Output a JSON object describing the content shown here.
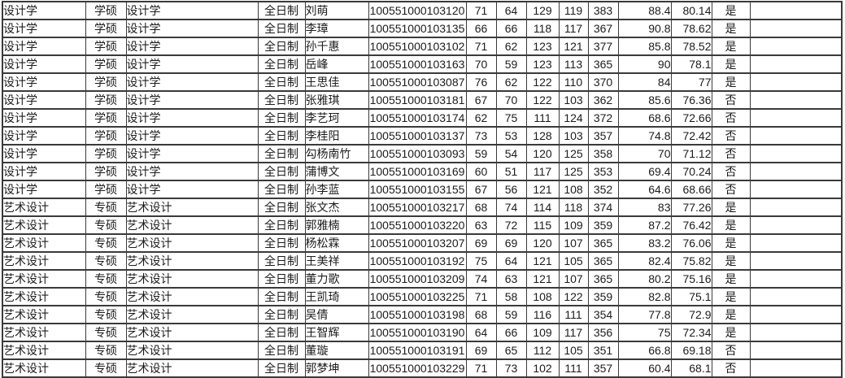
{
  "table": {
    "rows": [
      [
        "设计学",
        "学硕",
        "设计学",
        "全日制",
        "刘萌",
        "100551000103120",
        "71",
        "64",
        "129",
        "119",
        "383",
        "88.4",
        "80.14",
        "是",
        ""
      ],
      [
        "设计学",
        "学硕",
        "设计学",
        "全日制",
        "李璋",
        "100551000103135",
        "66",
        "66",
        "118",
        "117",
        "367",
        "90.8",
        "78.62",
        "是",
        ""
      ],
      [
        "设计学",
        "学硕",
        "设计学",
        "全日制",
        "孙千惠",
        "100551000103102",
        "71",
        "62",
        "123",
        "121",
        "377",
        "85.8",
        "78.52",
        "是",
        ""
      ],
      [
        "设计学",
        "学硕",
        "设计学",
        "全日制",
        "岳峰",
        "100551000103163",
        "70",
        "59",
        "123",
        "113",
        "365",
        "90",
        "78.1",
        "是",
        ""
      ],
      [
        "设计学",
        "学硕",
        "设计学",
        "全日制",
        "王思佳",
        "100551000103087",
        "76",
        "62",
        "122",
        "110",
        "370",
        "84",
        "77",
        "是",
        ""
      ],
      [
        "设计学",
        "学硕",
        "设计学",
        "全日制",
        "张雅琪",
        "100551000103181",
        "67",
        "70",
        "122",
        "103",
        "362",
        "85.6",
        "76.36",
        "否",
        ""
      ],
      [
        "设计学",
        "学硕",
        "设计学",
        "全日制",
        "李艺珂",
        "100551000103174",
        "62",
        "75",
        "111",
        "124",
        "372",
        "68.6",
        "72.66",
        "否",
        ""
      ],
      [
        "设计学",
        "学硕",
        "设计学",
        "全日制",
        "李桂阳",
        "100551000103137",
        "73",
        "53",
        "128",
        "103",
        "357",
        "74.8",
        "72.42",
        "否",
        ""
      ],
      [
        "设计学",
        "学硕",
        "设计学",
        "全日制",
        "勾杨南竹",
        "100551000103093",
        "59",
        "54",
        "120",
        "125",
        "358",
        "70",
        "71.12",
        "否",
        ""
      ],
      [
        "设计学",
        "学硕",
        "设计学",
        "全日制",
        "蒲博文",
        "100551000103169",
        "60",
        "51",
        "117",
        "125",
        "353",
        "69.4",
        "70.24",
        "否",
        ""
      ],
      [
        "设计学",
        "学硕",
        "设计学",
        "全日制",
        "孙李蓝",
        "100551000103155",
        "67",
        "56",
        "121",
        "108",
        "352",
        "64.6",
        "68.66",
        "否",
        ""
      ],
      [
        "艺术设计",
        "专硕",
        "艺术设计",
        "全日制",
        "张文杰",
        "100551000103217",
        "68",
        "74",
        "114",
        "118",
        "374",
        "83",
        "77.26",
        "是",
        ""
      ],
      [
        "艺术设计",
        "专硕",
        "艺术设计",
        "全日制",
        "郭雅楠",
        "100551000103220",
        "63",
        "72",
        "115",
        "109",
        "359",
        "87.2",
        "76.42",
        "是",
        ""
      ],
      [
        "艺术设计",
        "专硕",
        "艺术设计",
        "全日制",
        "杨松霖",
        "100551000103207",
        "69",
        "69",
        "120",
        "107",
        "365",
        "83.2",
        "76.06",
        "是",
        ""
      ],
      [
        "艺术设计",
        "专硕",
        "艺术设计",
        "全日制",
        "王美祥",
        "100551000103192",
        "75",
        "64",
        "121",
        "105",
        "365",
        "82.4",
        "75.82",
        "是",
        ""
      ],
      [
        "艺术设计",
        "专硕",
        "艺术设计",
        "全日制",
        "董力歌",
        "100551000103209",
        "74",
        "63",
        "121",
        "107",
        "365",
        "80.2",
        "75.16",
        "是",
        ""
      ],
      [
        "艺术设计",
        "专硕",
        "艺术设计",
        "全日制",
        "王凯琦",
        "100551000103225",
        "71",
        "58",
        "108",
        "122",
        "359",
        "82.8",
        "75.1",
        "是",
        ""
      ],
      [
        "艺术设计",
        "专硕",
        "艺术设计",
        "全日制",
        "吴倩",
        "100551000103198",
        "68",
        "59",
        "116",
        "111",
        "354",
        "77.8",
        "72.9",
        "是",
        ""
      ],
      [
        "艺术设计",
        "专硕",
        "艺术设计",
        "全日制",
        "王智辉",
        "100551000103190",
        "64",
        "66",
        "109",
        "117",
        "356",
        "75",
        "72.34",
        "是",
        ""
      ],
      [
        "艺术设计",
        "专硕",
        "艺术设计",
        "全日制",
        "董璇",
        "100551000103191",
        "69",
        "65",
        "112",
        "105",
        "351",
        "66.8",
        "69.18",
        "否",
        ""
      ],
      [
        "艺术设计",
        "专硕",
        "艺术设计",
        "全日制",
        "郭梦坤",
        "100551000103229",
        "71",
        "73",
        "102",
        "111",
        "357",
        "60.4",
        "68.1",
        "否",
        ""
      ]
    ]
  }
}
